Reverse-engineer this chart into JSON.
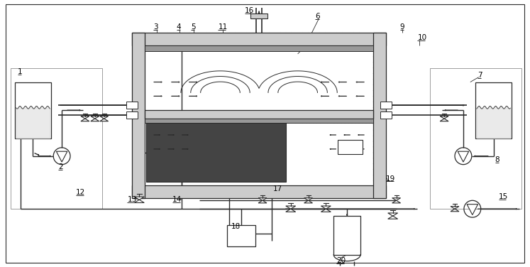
{
  "bg_color": "#ffffff",
  "line_color": "#2a2a2a",
  "gray_fill": "#aaaaaa",
  "light_gray": "#cccccc",
  "dark_gray": "#444444",
  "hatch_gray": "#999999",
  "figure_size": [
    7.47,
    3.76
  ],
  "dpi": 100
}
